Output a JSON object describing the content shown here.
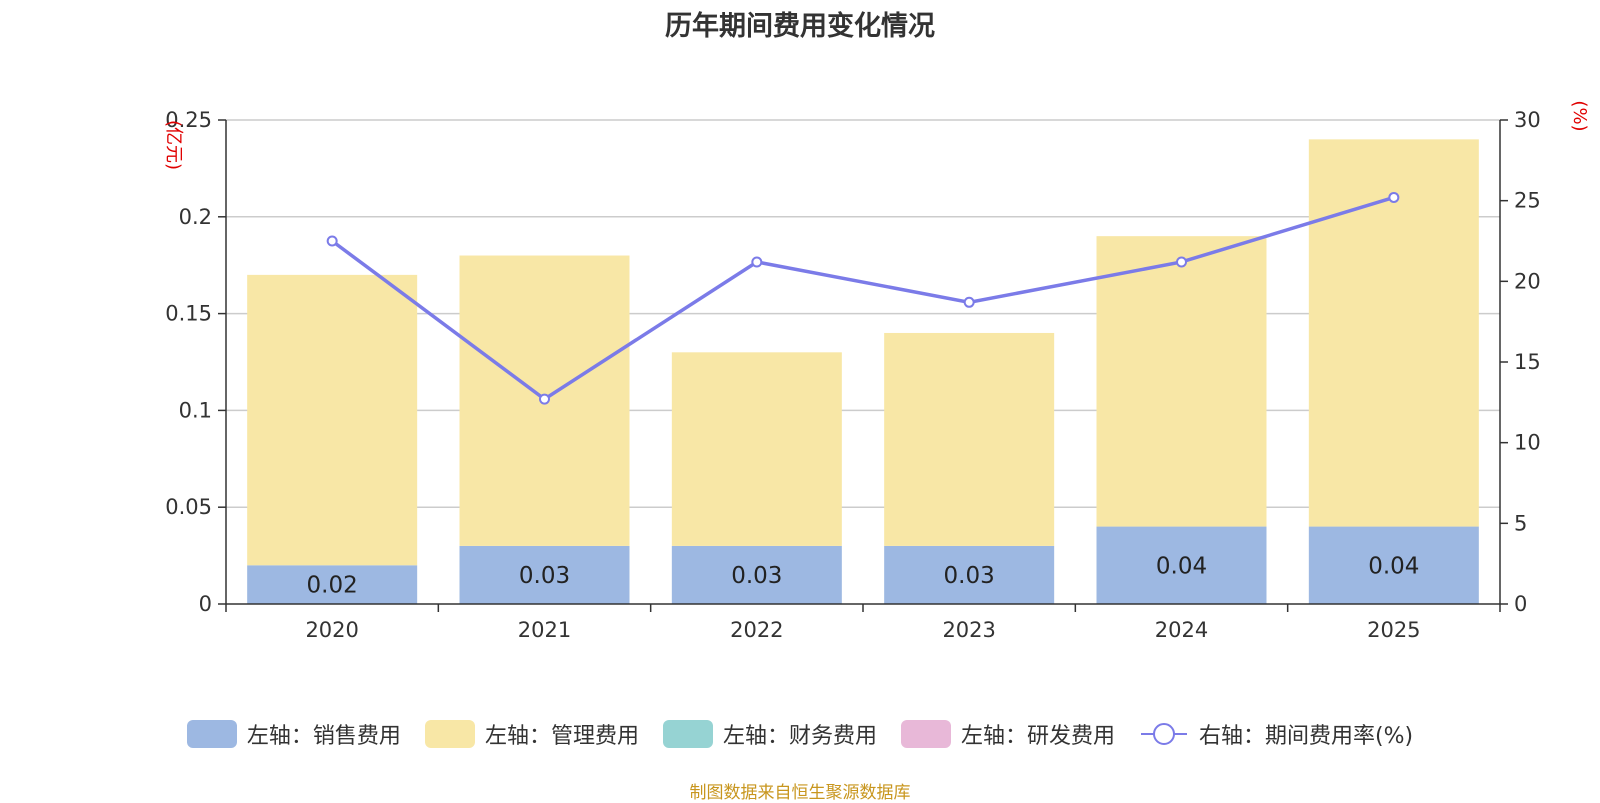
{
  "chart_data": {
    "type": "bar",
    "title": "历年期间费用变化情况",
    "categories": [
      "2020",
      "2021",
      "2022",
      "2023",
      "2024",
      "2025"
    ],
    "series": [
      {
        "name": "左轴：销售费用",
        "axis": "left",
        "values": [
          0.02,
          0.03,
          0.03,
          0.03,
          0.04,
          0.04
        ],
        "color": "#9db8e2",
        "labels": [
          "0.02",
          "0.03",
          "0.03",
          "0.03",
          "0.04",
          "0.04"
        ]
      },
      {
        "name": "左轴：管理费用",
        "axis": "left",
        "values": [
          0.15,
          0.15,
          0.1,
          0.11,
          0.15,
          0.2
        ],
        "color": "#f8e7a6"
      },
      {
        "name": "左轴：财务费用",
        "axis": "left",
        "values": [
          0,
          0,
          0,
          0,
          0,
          0
        ],
        "color": "#96d3d3"
      },
      {
        "name": "左轴：研发费用",
        "axis": "left",
        "values": [
          0,
          0,
          0,
          0,
          0,
          0
        ],
        "color": "#e8b8d8"
      },
      {
        "name": "右轴：期间费用率(%)",
        "axis": "right",
        "type": "line",
        "values": [
          22.5,
          12.7,
          21.2,
          18.7,
          21.2,
          25.2
        ],
        "color": "#7b7be8"
      }
    ],
    "left_axis": {
      "unit": "(亿元)",
      "ylim": [
        0,
        0.25
      ],
      "ticks": [
        0,
        0.05,
        0.1,
        0.15,
        0.2,
        0.25
      ],
      "tick_labels": [
        "0",
        "0.05",
        "0.1",
        "0.15",
        "0.2",
        "0.25"
      ]
    },
    "right_axis": {
      "unit": "(%)",
      "ylim": [
        0,
        30
      ],
      "ticks": [
        0,
        5,
        10,
        15,
        20,
        25,
        30
      ],
      "tick_labels": [
        "0",
        "5",
        "10",
        "15",
        "20",
        "25",
        "30"
      ]
    },
    "grid": true,
    "legend_position": "bottom"
  },
  "source": "制图数据来自恒生聚源数据库"
}
